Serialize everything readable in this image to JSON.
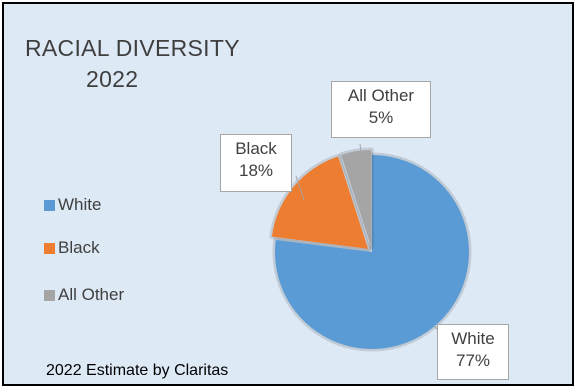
{
  "chart_data": {
    "type": "pie",
    "title_lines": [
      "RACIAL DIVERSITY",
      "2022"
    ],
    "categories": [
      "White",
      "Black",
      "All Other"
    ],
    "values": [
      77,
      18,
      5
    ],
    "value_labels": [
      "77%",
      "18%",
      "5%"
    ],
    "colors": [
      "#5b9bd5",
      "#ed7d31",
      "#a5a5a5"
    ],
    "legend_position": "left",
    "footnote": "2022 Estimate by  Claritas"
  }
}
